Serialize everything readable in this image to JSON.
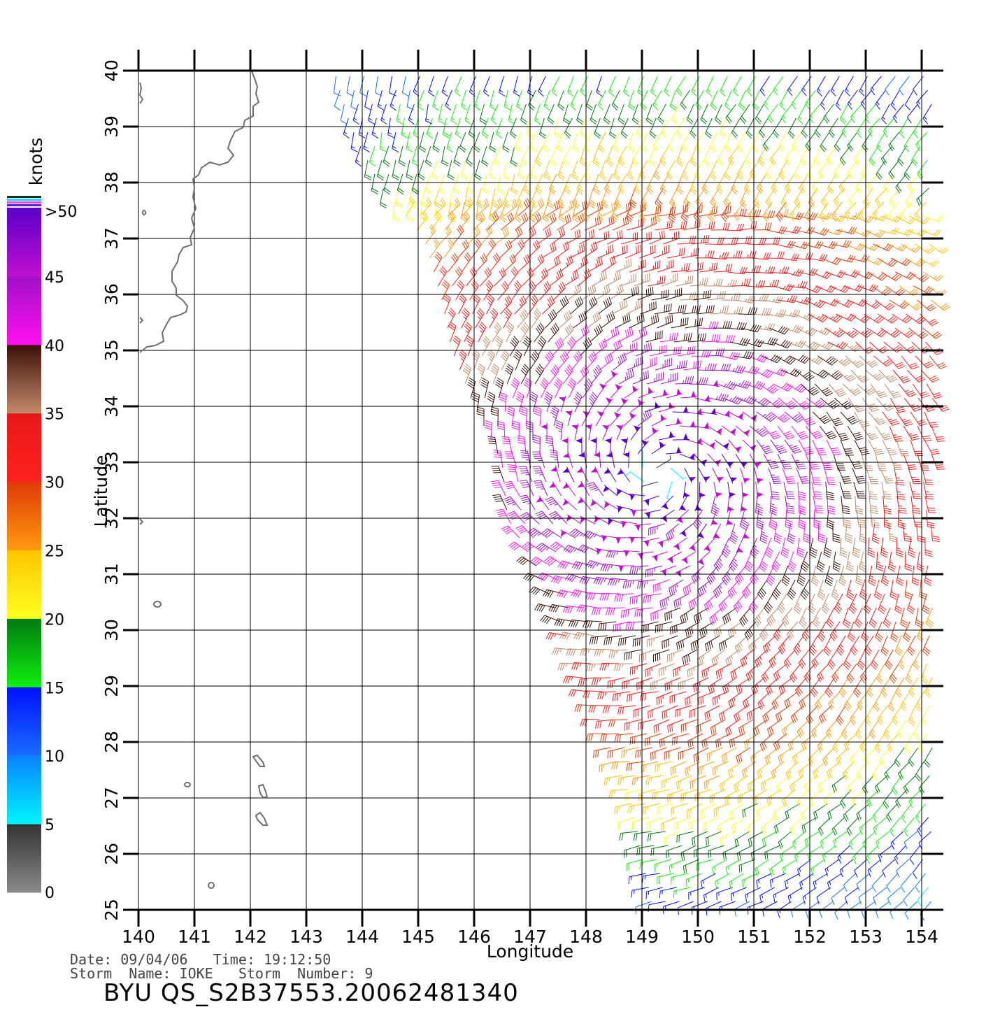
{
  "colorbar": {
    "unit_label": "knots",
    "tick_labels": [
      "0",
      "5",
      "10",
      "15",
      "20",
      "25",
      "30",
      "35",
      "40",
      "45",
      ">50"
    ],
    "segments": [
      {
        "from": 0,
        "to": 5,
        "top": "#333333",
        "bottom": "#8a8a8a"
      },
      {
        "from": 5,
        "to": 10,
        "top": "#0a82ff",
        "bottom": "#00f4ff"
      },
      {
        "from": 10,
        "to": 15,
        "top": "#0010ff",
        "bottom": "#1a6cff"
      },
      {
        "from": 15,
        "to": 20,
        "top": "#007a10",
        "bottom": "#10f010"
      },
      {
        "from": 20,
        "to": 25,
        "top": "#ffc400",
        "bottom": "#ffff20"
      },
      {
        "from": 25,
        "to": 30,
        "top": "#e03a08",
        "bottom": "#ff9a10"
      },
      {
        "from": 30,
        "to": 35,
        "top": "#e81818",
        "bottom": "#ff2020"
      },
      {
        "from": 35,
        "to": 40,
        "top": "#3c1008",
        "bottom": "#c28a6a"
      },
      {
        "from": 40,
        "to": 45,
        "top": "#a010c8",
        "bottom": "#ff10f0"
      },
      {
        "from": 45,
        "to": 50,
        "top": "#5a00c8",
        "bottom": "#c010d0"
      }
    ],
    "cap_colors": [
      "#2a2a2a",
      "#00e0ff",
      "#ff40ff",
      "#6020c0"
    ]
  },
  "chart_data": {
    "type": "wind-barb map",
    "xlabel": "Longitude",
    "ylabel": "Latitude",
    "xlim": [
      140,
      154
    ],
    "ylim": [
      25,
      40
    ],
    "xticks": [
      "140",
      "141",
      "142",
      "143",
      "144",
      "145",
      "146",
      "147",
      "148",
      "149",
      "150",
      "151",
      "152",
      "153",
      "154"
    ],
    "yticks": [
      "25",
      "26",
      "27",
      "28",
      "29",
      "30",
      "31",
      "32",
      "33",
      "34",
      "35",
      "36",
      "37",
      "38",
      "39",
      "40"
    ],
    "grid": true,
    "storm_center": {
      "lon": 149.3,
      "lat": 32.8
    },
    "swath_west_edge": [
      [
        25,
        149.2
      ],
      [
        27,
        148.8
      ],
      [
        29,
        148.0
      ],
      [
        31,
        147.2
      ],
      [
        32,
        146.6
      ],
      [
        33,
        146.5
      ],
      [
        34,
        146.0
      ],
      [
        35,
        145.6
      ],
      [
        36,
        145.4
      ],
      [
        37,
        145.1
      ],
      [
        38,
        144.3
      ],
      [
        39,
        143.8
      ],
      [
        40,
        143.5
      ]
    ],
    "swath_east_edge_lon": 154.2,
    "speed_units": "knots"
  },
  "coastline_color": "#6e6e6e",
  "info": {
    "line1": "Date: 09/04/06   Time: 19:12:50",
    "line2": "Storm  Name: IOKE   Storm  Number: 9"
  },
  "file_id": "BYU QS_S2B37553.20062481340"
}
